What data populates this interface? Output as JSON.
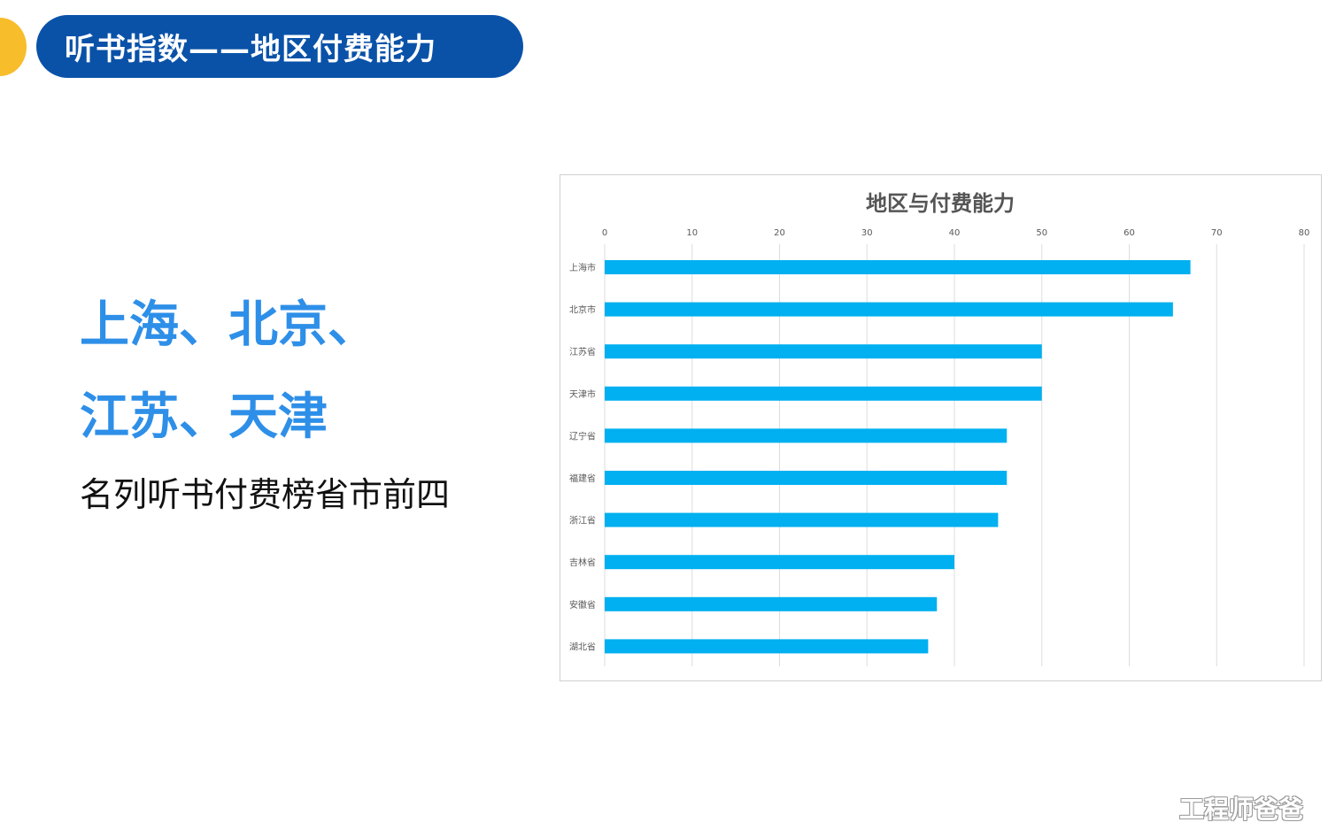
{
  "header": {
    "title": "听书指数——地区付费能力"
  },
  "headline": {
    "line1": "上海、北京、",
    "line2": "江苏、天津"
  },
  "subline": "名列听书付费榜省市前四",
  "watermark": "工程师爸爸",
  "colors": {
    "accent": "#0a52a8",
    "headline": "#2e8fe8",
    "bar": "#00b0f0",
    "dot": "#f7bd2a"
  },
  "chart_data": {
    "type": "bar",
    "orientation": "horizontal",
    "title": "地区与付费能力",
    "categories": [
      "上海市",
      "北京市",
      "江苏省",
      "天津市",
      "辽宁省",
      "福建省",
      "浙江省",
      "吉林省",
      "安徽省",
      "湖北省"
    ],
    "values": [
      67,
      65,
      50,
      50,
      46,
      46,
      45,
      40,
      38,
      37
    ],
    "xlim": [
      0,
      80
    ],
    "ticks": [
      0,
      10,
      20,
      30,
      40,
      50,
      60,
      70,
      80
    ],
    "tick_labels": [
      "0",
      "10",
      "20",
      "30",
      "40",
      "50",
      "60",
      "70",
      "80"
    ],
    "axis_position": "top",
    "grid": true
  }
}
